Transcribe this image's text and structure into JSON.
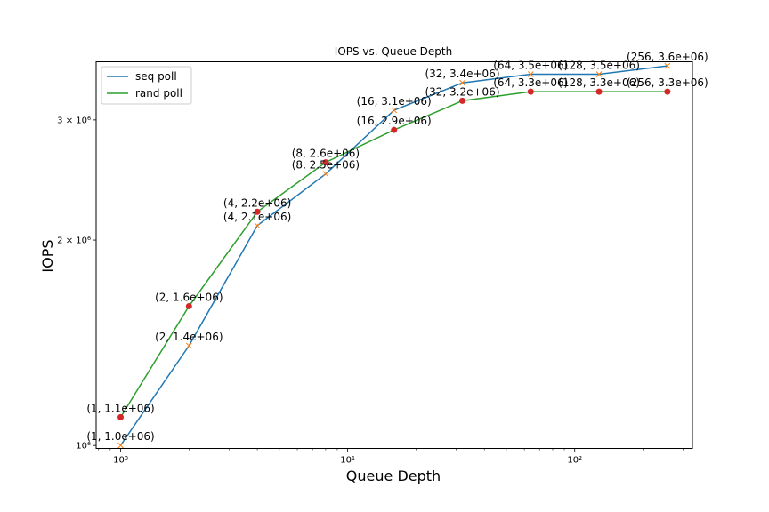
{
  "chart_data": {
    "type": "line",
    "title": "IOPS vs. Queue Depth",
    "xlabel": "Queue Depth",
    "ylabel": "IOPS",
    "x_scale": "log",
    "y_scale": "log",
    "xlim": [
      0.78,
      330
    ],
    "ylim": [
      990000,
      3650000
    ],
    "x_ticks": [
      {
        "value": 1,
        "label": "10⁰"
      },
      {
        "value": 10,
        "label": "10¹"
      },
      {
        "value": 100,
        "label": "10²"
      }
    ],
    "y_ticks": [
      {
        "value": 1000000,
        "label": "10⁶"
      },
      {
        "value": 2000000,
        "label": "2 × 10⁶"
      },
      {
        "value": 3000000,
        "label": "3 × 10⁶"
      }
    ],
    "legend_position": "top-left",
    "grid": false,
    "series": [
      {
        "name": "seq poll",
        "color": "#1f77b4",
        "marker_color": "#ff7f0e",
        "marker": "x",
        "x": [
          1,
          2,
          4,
          8,
          16,
          32,
          64,
          128,
          256
        ],
        "y": [
          1000000,
          1400000,
          2100000,
          2500000,
          3100000,
          3400000,
          3500000,
          3500000,
          3600000
        ],
        "labels": [
          "(1, 1.0e+06)",
          "(2, 1.4e+06)",
          "(4, 2.1e+06)",
          "(8, 2.5e+06)",
          "(16, 3.1e+06)",
          "(32, 3.4e+06)",
          "(64, 3.5e+06)",
          "(128, 3.5e+06)",
          "(256, 3.6e+06)"
        ]
      },
      {
        "name": "rand poll",
        "color": "#2ca02c",
        "marker_color": "#d62728",
        "marker": "o",
        "x": [
          1,
          2,
          4,
          8,
          16,
          32,
          64,
          128,
          256
        ],
        "y": [
          1100000,
          1600000,
          2200000,
          2600000,
          2900000,
          3200000,
          3300000,
          3300000,
          3300000
        ],
        "labels": [
          "(1, 1.1e+06)",
          "(2, 1.6e+06)",
          "(4, 2.2e+06)",
          "(8, 2.6e+06)",
          "(16, 2.9e+06)",
          "(32, 3.2e+06)",
          "(64, 3.3e+06)",
          "(128, 3.3e+06)",
          "(256, 3.3e+06)"
        ]
      }
    ]
  }
}
